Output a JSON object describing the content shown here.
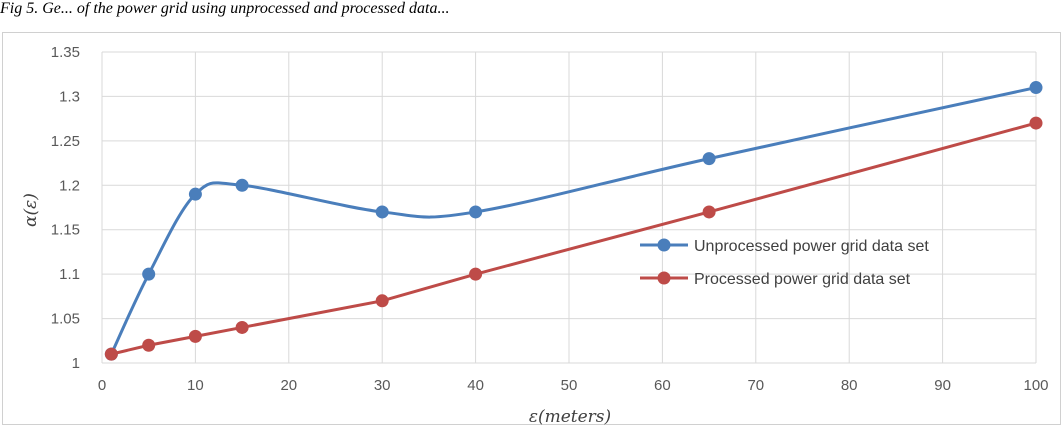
{
  "caption": "Fig 5. Ge... of the power grid using unprocessed and processed data...",
  "chart_data": {
    "type": "line",
    "title": "",
    "xlabel": "ε(meters)",
    "ylabel": "α(ε)",
    "xlim": [
      0,
      100
    ],
    "ylim": [
      1,
      1.35
    ],
    "x_ticks": [
      0,
      10,
      20,
      30,
      40,
      50,
      60,
      70,
      80,
      90,
      100
    ],
    "y_ticks": [
      "1",
      "1.05",
      "1.1",
      "1.15",
      "1.2",
      "1.25",
      "1.3",
      "1.35"
    ],
    "grid": true,
    "legend_position": "right",
    "series": [
      {
        "name": "Unprocessed power grid data set",
        "color": "#4a7ebb",
        "smooth": true,
        "x": [
          1,
          5,
          10,
          15,
          30,
          40,
          65,
          100
        ],
        "y": [
          1.01,
          1.1,
          1.19,
          1.2,
          1.17,
          1.17,
          1.23,
          1.31
        ]
      },
      {
        "name": "Processed power grid data set",
        "color": "#be4b48",
        "smooth": false,
        "x": [
          1,
          5,
          10,
          15,
          30,
          40,
          65,
          100
        ],
        "y": [
          1.01,
          1.02,
          1.03,
          1.04,
          1.07,
          1.1,
          1.17,
          1.27
        ]
      }
    ]
  }
}
